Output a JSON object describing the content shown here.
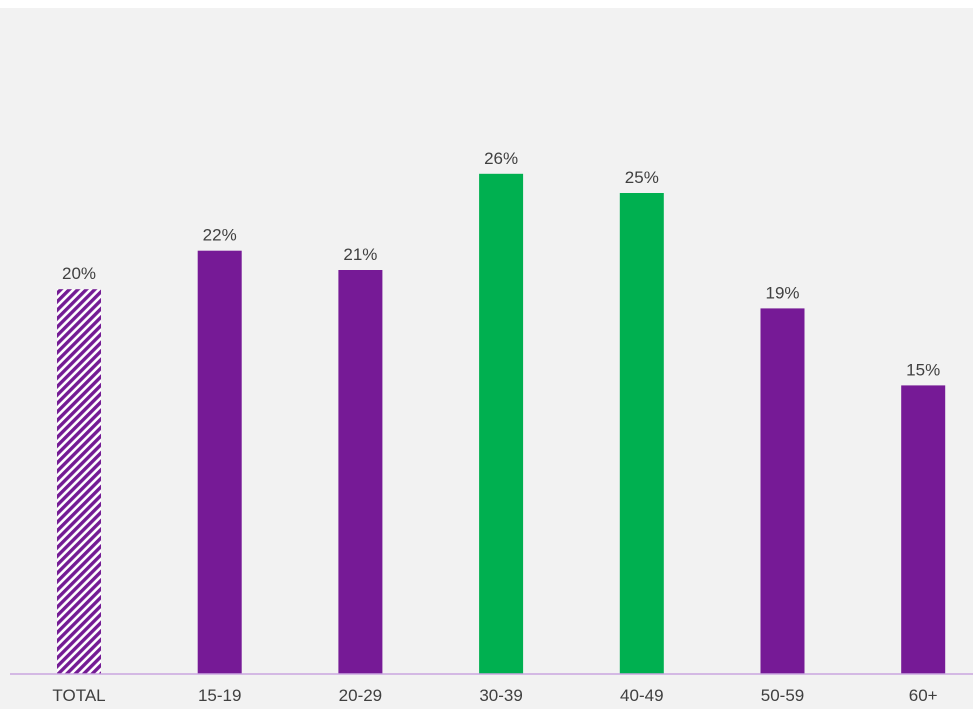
{
  "chart_data": {
    "type": "bar",
    "categories": [
      "TOTAL",
      "15-19",
      "20-29",
      "30-39",
      "40-49",
      "50-59",
      "60+"
    ],
    "values": [
      20,
      22,
      21,
      26,
      25,
      19,
      15
    ],
    "value_labels": [
      "20%",
      "22%",
      "21%",
      "26%",
      "25%",
      "19%",
      "15%"
    ],
    "bar_styles": [
      "hatched",
      "solid",
      "solid",
      "solid",
      "solid",
      "solid",
      "solid"
    ],
    "bar_colors": [
      "#741b94",
      "#761a96",
      "#761a96",
      "#00b050",
      "#00b050",
      "#761a96",
      "#761a96"
    ],
    "axis_color": "#c9a6e0",
    "background": "#f2f2f2",
    "ylim": [
      0,
      30
    ],
    "grid": false,
    "title": "",
    "xlabel": "",
    "ylabel": ""
  }
}
